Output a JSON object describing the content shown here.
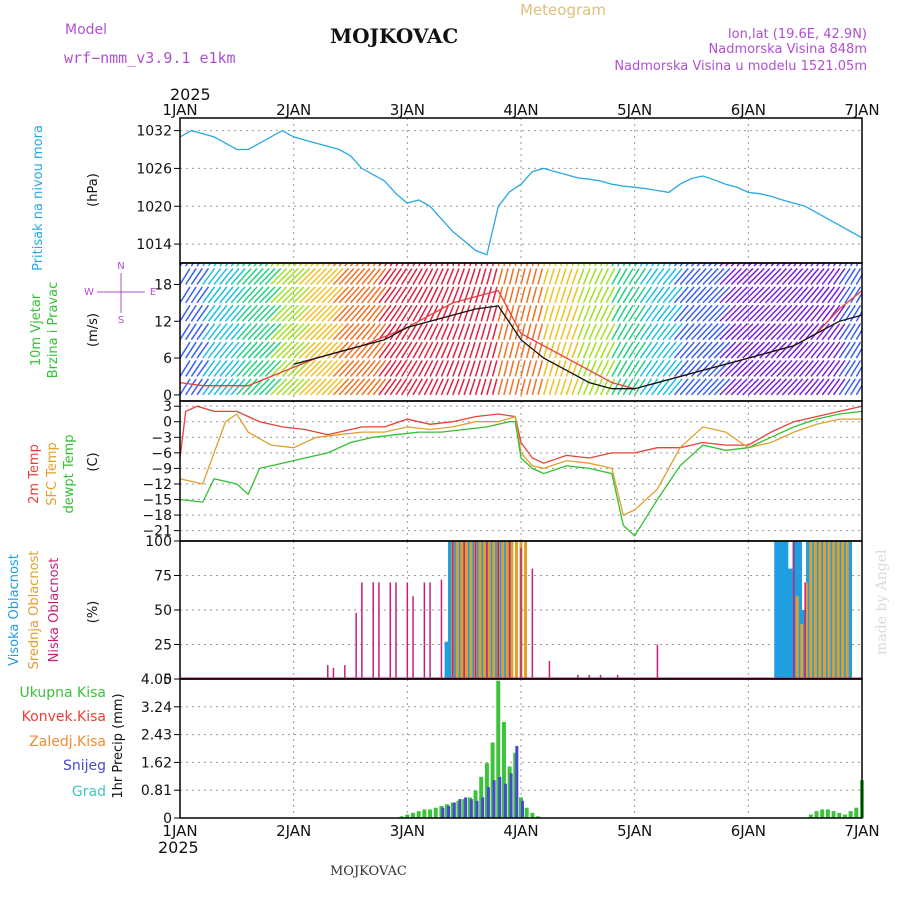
{
  "header": {
    "model_label": "Model",
    "model_name": "wrf−nmm_v3.9.1  e1km",
    "station": "MOJKOVAC",
    "title": "Meteogram",
    "coords": "lon,lat (19.6E, 42.9N)",
    "elevation": "Nadmorska Visina 848m",
    "model_elevation": "Nadmorska Visina u modelu 1521.05m",
    "year": "2025",
    "footer_station": "MOJKOVAC",
    "credit": "made by Angel"
  },
  "time_axis": [
    "1JAN",
    "2JAN",
    "3JAN",
    "4JAN",
    "5JAN",
    "6JAN",
    "7JAN"
  ],
  "colors": {
    "pressure": "#29a8e0",
    "temp2m": "#e8403a",
    "sfc_temp": "#e0a030",
    "dewpoint": "#33c033",
    "high_cloud": "#1f9ee0",
    "mid_cloud": "#e0a030",
    "low_cloud": "#c8207a",
    "total_precip": "#3cc33c",
    "conv_precip": "#e8403a",
    "frozen_precip": "#f08c30",
    "snow": "#4848d0",
    "graupel": "#40c8c0"
  },
  "chart_data": [
    {
      "type": "line",
      "panel": "pressure",
      "title": "Pritisak na nivou mora",
      "ylabel": "(hPa)",
      "ylim": [
        1011,
        1034
      ],
      "yticks": [
        "1032",
        "1026",
        "1020",
        "1014"
      ],
      "grid": true,
      "series": [
        {
          "name": "Pritisak na nivou mora",
          "color": "#29a8e0",
          "x": [
            0,
            0.1,
            0.2,
            0.3,
            0.4,
            0.5,
            0.6,
            0.7,
            0.8,
            0.9,
            1.0,
            1.1,
            1.2,
            1.3,
            1.4,
            1.5,
            1.6,
            1.7,
            1.8,
            1.9,
            2.0,
            2.1,
            2.2,
            2.3,
            2.4,
            2.5,
            2.6,
            2.7,
            2.8,
            2.9,
            3.0,
            3.1,
            3.2,
            3.3,
            3.4,
            3.5,
            3.6,
            3.7,
            3.8,
            3.9,
            4.0,
            4.1,
            4.2,
            4.3,
            4.4,
            4.5,
            4.6,
            4.7,
            4.8,
            4.9,
            5.0,
            5.1,
            5.2,
            5.3,
            5.4,
            5.5,
            5.6,
            5.7,
            5.8,
            5.9,
            6.0
          ],
          "y": [
            1031,
            1032,
            1031.5,
            1031,
            1030,
            1029,
            1029,
            1030,
            1031,
            1032,
            1031,
            1030.5,
            1030,
            1029.5,
            1029,
            1028,
            1026,
            1025,
            1024,
            1022,
            1020.5,
            1021,
            1020,
            1018,
            1016,
            1014.5,
            1013,
            1012.3,
            1020,
            1022.3,
            1023.5,
            1025.5,
            1026,
            1025.5,
            1025,
            1024.5,
            1024.3,
            1024,
            1023.5,
            1023.2,
            1023,
            1022.8,
            1022.5,
            1022.2,
            1023.5,
            1024.4,
            1024.8,
            1024.2,
            1023.5,
            1023,
            1022.2,
            1022,
            1021.6,
            1021,
            1020.5,
            1020,
            1019,
            1018,
            1017,
            1016,
            1015
          ]
        }
      ]
    },
    {
      "type": "line",
      "panel": "wind",
      "title": "10m Vjetar Brzina i Pravac",
      "ylabel": "(m/s)",
      "ylim": [
        -1,
        21.5
      ],
      "yticks": [
        "18",
        "12",
        "6",
        "0"
      ],
      "compass": [
        "N",
        "E",
        "S",
        "W"
      ],
      "series": [
        {
          "name": "speed",
          "color": "#e8403a",
          "x": [
            0,
            0.2,
            0.4,
            0.6,
            0.8,
            1.0,
            1.2,
            1.4,
            1.6,
            1.8,
            2.0,
            2.2,
            2.4,
            2.6,
            2.8,
            3.0,
            3.2,
            3.4,
            3.6,
            3.8,
            4.0,
            4.2,
            4.4,
            4.6,
            4.8,
            5.0,
            5.2,
            5.4,
            5.6,
            5.8,
            6.0
          ],
          "y": [
            2,
            1.5,
            1.5,
            1.5,
            3,
            4.5,
            6,
            7,
            8,
            9.5,
            11,
            13,
            15,
            16,
            17,
            10,
            8,
            6,
            4,
            2,
            1,
            2,
            3,
            4,
            5,
            6,
            7,
            8,
            10,
            14,
            17
          ]
        },
        {
          "name": "mean",
          "color": "#111111",
          "x": [
            1.0,
            1.2,
            1.4,
            1.6,
            1.8,
            2.0,
            2.2,
            2.4,
            2.6,
            2.8,
            3.0,
            3.2,
            3.4,
            3.6,
            3.8,
            4.0,
            4.2,
            4.4,
            4.6,
            4.8,
            5.0,
            5.2,
            5.4,
            5.6,
            5.8,
            6.0
          ],
          "y": [
            5,
            6,
            7,
            8,
            9,
            11,
            12,
            13,
            14,
            14.5,
            9,
            6,
            4,
            2,
            1,
            1,
            2,
            3,
            4,
            5,
            6,
            7,
            8,
            10,
            12,
            13
          ]
        }
      ]
    },
    {
      "type": "line",
      "panel": "temperature",
      "ylabel": "(C)",
      "ylim": [
        -23,
        4
      ],
      "yticks": [
        "3",
        "0",
        "−3",
        "−6",
        "−9",
        "−12",
        "−15",
        "−18",
        "−21"
      ],
      "grid": true,
      "series": [
        {
          "name": "2m Temp",
          "color": "#e8403a",
          "x": [
            0,
            0.05,
            0.15,
            0.3,
            0.5,
            0.7,
            0.9,
            1.1,
            1.3,
            1.4,
            1.6,
            1.8,
            2.0,
            2.2,
            2.4,
            2.6,
            2.8,
            2.95,
            3.0,
            3.1,
            3.2,
            3.4,
            3.6,
            3.8,
            4.0,
            4.2,
            4.4,
            4.6,
            4.8,
            5.0,
            5.2,
            5.4,
            5.6,
            5.8,
            6.0
          ],
          "y": [
            -7,
            2,
            3,
            2,
            2,
            0,
            -1,
            -1.5,
            -2.5,
            -2,
            -1,
            -1,
            0.5,
            -0.5,
            0,
            1,
            1.5,
            1,
            -4,
            -7,
            -8,
            -6.5,
            -7,
            -6,
            -6,
            -5,
            -5,
            -4,
            -4.5,
            -4.5,
            -2,
            0,
            1,
            2,
            3
          ]
        },
        {
          "name": "SFC Temp",
          "color": "#e0a030",
          "x": [
            0,
            0.2,
            0.4,
            0.5,
            0.6,
            0.8,
            1.0,
            1.2,
            1.4,
            1.6,
            1.8,
            2.0,
            2.2,
            2.4,
            2.6,
            2.8,
            2.95,
            3.0,
            3.1,
            3.2,
            3.4,
            3.6,
            3.8,
            3.9,
            4.0,
            4.2,
            4.4,
            4.6,
            4.8,
            5.0,
            5.2,
            5.4,
            5.6,
            5.8,
            6.0
          ],
          "y": [
            -11,
            -12,
            0,
            1.5,
            -2,
            -4.5,
            -5,
            -3,
            -2.5,
            -2,
            -2,
            -1,
            -1.5,
            -1,
            0,
            0,
            1,
            -6,
            -8.5,
            -9,
            -7.5,
            -8,
            -9,
            -18,
            -17,
            -13,
            -5,
            -1,
            -2,
            -5,
            -4,
            -2,
            -0.5,
            0.5,
            0.5
          ]
        },
        {
          "name": "dewpt Temp",
          "color": "#33c033",
          "x": [
            0,
            0.2,
            0.3,
            0.5,
            0.6,
            0.7,
            0.9,
            1.1,
            1.3,
            1.5,
            1.7,
            1.9,
            2.1,
            2.3,
            2.5,
            2.7,
            2.9,
            2.95,
            3.0,
            3.1,
            3.2,
            3.4,
            3.6,
            3.8,
            3.9,
            4.0,
            4.2,
            4.4,
            4.6,
            4.8,
            5.0,
            5.2,
            5.4,
            5.6,
            5.8,
            6.0
          ],
          "y": [
            -15,
            -15.5,
            -11,
            -12,
            -14,
            -9,
            -8,
            -7,
            -6,
            -4,
            -3,
            -2.5,
            -2,
            -2,
            -1.5,
            -1,
            0,
            0,
            -7,
            -9,
            -10,
            -8.5,
            -9,
            -10,
            -20,
            -22,
            -15,
            -8.5,
            -4.5,
            -5.5,
            -5,
            -3,
            -1,
            0.5,
            1.5,
            2
          ]
        }
      ]
    },
    {
      "type": "bar",
      "panel": "cloud",
      "ylabel": "(%)",
      "ylim": [
        0,
        100
      ],
      "yticks": [
        "100",
        "75",
        "50",
        "25",
        "0"
      ],
      "grid": true,
      "series": [
        {
          "name": "Visoka Oblacnost",
          "color": "#1f9ee0",
          "x": [
            2.35,
            2.38,
            2.42,
            2.46,
            2.5,
            2.54,
            2.58,
            2.62,
            2.66,
            2.7,
            2.74,
            2.78,
            2.82,
            2.86,
            2.9,
            5.25,
            5.29,
            5.33,
            5.37,
            5.41,
            5.45,
            5.49,
            5.53,
            5.57,
            5.61,
            5.65,
            5.69,
            5.73,
            5.77,
            5.81,
            5.85,
            5.89
          ],
          "y": [
            27,
            100,
            100,
            100,
            100,
            100,
            100,
            100,
            100,
            100,
            100,
            100,
            100,
            100,
            100,
            100,
            100,
            100,
            80,
            100,
            100,
            50,
            100,
            100,
            100,
            100,
            100,
            100,
            100,
            100,
            100,
            100
          ]
        },
        {
          "name": "Srednja Oblacnost",
          "color": "#e0a030",
          "x": [
            2.4,
            2.44,
            2.48,
            2.52,
            2.56,
            2.6,
            2.64,
            2.68,
            2.72,
            2.76,
            2.8,
            2.84,
            2.88,
            2.92,
            2.96,
            3.0,
            3.04,
            5.43,
            5.47,
            5.51,
            5.55,
            5.59,
            5.63,
            5.67,
            5.71,
            5.75,
            5.79,
            5.83,
            5.87
          ],
          "y": [
            100,
            100,
            100,
            100,
            100,
            100,
            100,
            100,
            100,
            100,
            100,
            100,
            100,
            100,
            100,
            100,
            100,
            60,
            40,
            70,
            100,
            100,
            100,
            100,
            100,
            100,
            100,
            100,
            100
          ]
        },
        {
          "name": "Niska Oblacnost",
          "color": "#c8207a",
          "x": [
            1.3,
            1.35,
            1.45,
            1.55,
            1.6,
            1.7,
            1.75,
            1.85,
            1.9,
            2.0,
            2.05,
            2.15,
            2.2,
            2.3,
            2.4,
            2.5,
            2.6,
            2.7,
            2.8,
            2.9,
            3.0,
            3.1,
            3.25,
            3.5,
            3.6,
            3.7,
            3.85,
            4.2,
            5.4,
            5.5
          ],
          "y": [
            10,
            8,
            10,
            48,
            70,
            70,
            70,
            70,
            70,
            70,
            60,
            70,
            70,
            72,
            100,
            100,
            100,
            100,
            100,
            100,
            95,
            80,
            13,
            3,
            3,
            3,
            3,
            25,
            100,
            70
          ]
        }
      ]
    },
    {
      "type": "bar",
      "panel": "precip",
      "ylabel": "1hr Precip (mm)",
      "ylim": [
        0,
        4.05
      ],
      "yticks": [
        "4.05",
        "3.24",
        "2.43",
        "1.62",
        "0.81",
        "0"
      ],
      "grid": true,
      "series": [
        {
          "name": "Ukupna Kisa",
          "color": "#3cc33c",
          "x": [
            1.95,
            2.0,
            2.05,
            2.1,
            2.15,
            2.2,
            2.25,
            2.3,
            2.35,
            2.4,
            2.45,
            2.5,
            2.55,
            2.6,
            2.65,
            2.7,
            2.75,
            2.8,
            2.85,
            2.9,
            2.95,
            3.0,
            3.05,
            3.1,
            3.15,
            5.55,
            5.6,
            5.65,
            5.7,
            5.75,
            5.8,
            5.85,
            5.9,
            5.95,
            6.0
          ],
          "y": [
            0.05,
            0.1,
            0.15,
            0.2,
            0.25,
            0.25,
            0.3,
            0.35,
            0.4,
            0.45,
            0.5,
            0.55,
            0.6,
            0.8,
            1.2,
            1.6,
            2.2,
            4.0,
            2.8,
            1.5,
            1.9,
            0.6,
            0.3,
            0.15,
            0.05,
            0.1,
            0.2,
            0.25,
            0.25,
            0.2,
            0.15,
            0.1,
            0.2,
            0.3,
            1.1
          ]
        },
        {
          "name": "Konvek.Kisa",
          "color": "#e8403a",
          "x": [],
          "y": []
        },
        {
          "name": "Zaledj.Kisa",
          "color": "#f08c30",
          "x": [],
          "y": []
        },
        {
          "name": "Snijeg",
          "color": "#4848d0",
          "x": [
            2.3,
            2.35,
            2.4,
            2.45,
            2.5,
            2.55,
            2.6,
            2.65,
            2.7,
            2.75,
            2.8,
            2.85,
            2.9,
            2.95,
            3.0
          ],
          "y": [
            0.3,
            0.35,
            0.45,
            0.55,
            0.6,
            0.55,
            0.5,
            0.6,
            0.9,
            1.1,
            1.2,
            1.0,
            1.3,
            2.1,
            0.5
          ]
        },
        {
          "name": "Grad",
          "color": "#40c8c0",
          "x": [],
          "y": []
        }
      ]
    }
  ]
}
